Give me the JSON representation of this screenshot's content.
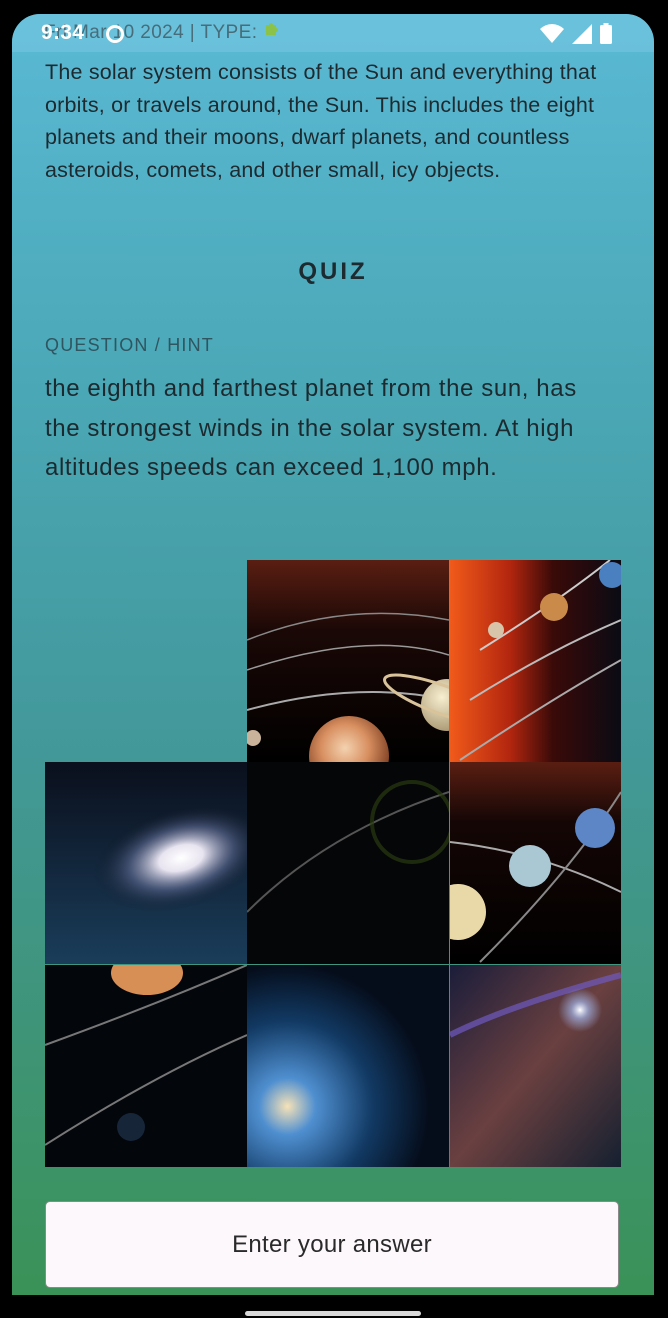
{
  "status_bar": {
    "time": "9:34",
    "date_line": "Fri Mar 10 2024 | TYPE: ",
    "type_icon": "puzzle-icon",
    "icons": [
      "wifi-icon",
      "signal-icon",
      "battery-icon"
    ]
  },
  "article": {
    "description": "The solar system consists of the Sun and everything that orbits, or travels around, the Sun. This includes the eight planets and their moons, dwarf planets, and countless asteroids, comets, and other small, icy objects."
  },
  "quiz": {
    "heading": "QUIZ",
    "hint_label": "QUESTION / HINT",
    "question": "the eighth and farthest planet from the sun, has the strongest winds in the solar system. At high altitudes speeds can exceed 1,100 mph."
  },
  "puzzle": {
    "rows": 3,
    "cols": 3,
    "empty_slot": "top-left",
    "tiles": [
      "jupiter-saturn-orbit-tile",
      "sun-inner-planets-tile",
      "spiral-galaxy-tile",
      "dark-orbit-tile",
      "uranus-neptune-tile",
      "jupiter-orbit-tile",
      "blue-star-tile",
      "nebula-tile"
    ]
  },
  "answer": {
    "placeholder": "Enter your answer"
  },
  "colors": {
    "gradient_top": "#5ab9d4",
    "gradient_bottom": "#3b9257",
    "text": "#1d2a30"
  }
}
